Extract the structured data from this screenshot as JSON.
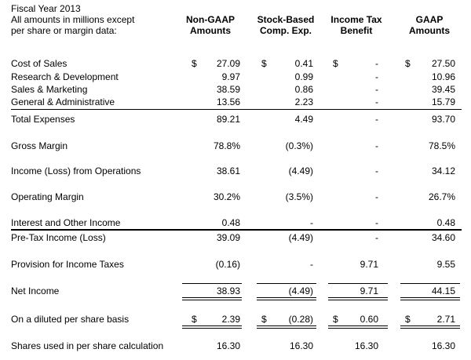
{
  "title": {
    "line1": "Fiscal Year 2013",
    "line2": "All amounts in millions except",
    "line3": "per share or margin data:"
  },
  "columns": [
    {
      "line1": "Non-GAAP",
      "line2": "Amounts"
    },
    {
      "line1": "Stock-Based",
      "line2": "Comp. Exp."
    },
    {
      "line1": "Income Tax",
      "line2": "Benefit"
    },
    {
      "line1": "GAAP",
      "line2": "Amounts"
    }
  ],
  "currency_symbol": "$",
  "rows": [
    {
      "label": "Cost of Sales",
      "values": [
        "27.09",
        "0.41",
        "-",
        "27.50"
      ]
    },
    {
      "label": "Research & Development",
      "values": [
        "9.97",
        "0.99",
        "-",
        "10.96"
      ]
    },
    {
      "label": "Sales & Marketing",
      "values": [
        "38.59",
        "0.86",
        "-",
        "39.45"
      ]
    },
    {
      "label": "General & Administrative",
      "values": [
        "13.56",
        "2.23",
        "-",
        "15.79"
      ]
    },
    {
      "label": "Total Expenses",
      "values": [
        "89.21",
        "4.49",
        "-",
        "93.70"
      ]
    },
    {
      "label": "Gross Margin",
      "values": [
        "78.8%",
        "(0.3%)",
        "-",
        "78.5%"
      ]
    },
    {
      "label": "Income (Loss) from Operations",
      "values": [
        "38.61",
        "(4.49)",
        "-",
        "34.12"
      ]
    },
    {
      "label": "Operating Margin",
      "values": [
        "30.2%",
        "(3.5%)",
        "-",
        "26.7%"
      ]
    },
    {
      "label": "Interest and Other Income",
      "values": [
        "0.48",
        "-",
        "-",
        "0.48"
      ]
    },
    {
      "label": "Pre-Tax Income (Loss)",
      "values": [
        "39.09",
        "(4.49)",
        "-",
        "34.60"
      ]
    },
    {
      "label": "Provision for Income Taxes",
      "values": [
        "(0.16)",
        "-",
        "9.71",
        "9.55"
      ]
    },
    {
      "label": "Net Income",
      "values": [
        "38.93",
        "(4.49)",
        "9.71",
        "44.15"
      ]
    },
    {
      "label": "On a diluted per share basis",
      "values": [
        "2.39",
        "(0.28)",
        "0.60",
        "2.71"
      ]
    },
    {
      "label": "Shares used in per share calculation",
      "values": [
        "16.30",
        "16.30",
        "16.30",
        "16.30"
      ]
    }
  ]
}
